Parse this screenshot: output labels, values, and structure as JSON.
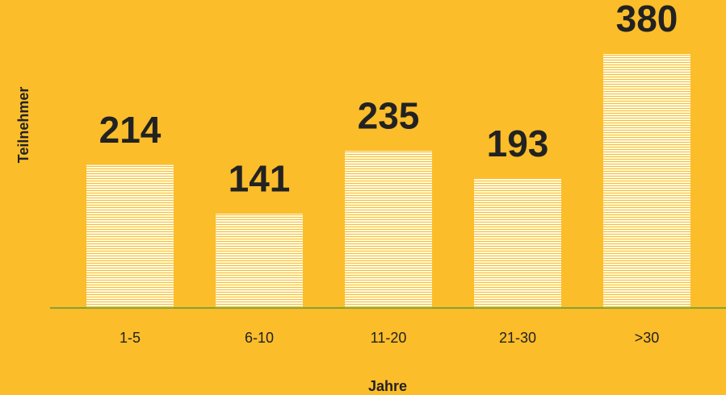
{
  "chart_data": {
    "type": "bar",
    "x_label": "Jahre",
    "y_label": "Teilnehmer",
    "categories": [
      "1-5",
      "6-10",
      "11-20",
      "21-30",
      ">30"
    ],
    "values": [
      214,
      141,
      235,
      193,
      380
    ],
    "color": "#fffbe8"
  }
}
